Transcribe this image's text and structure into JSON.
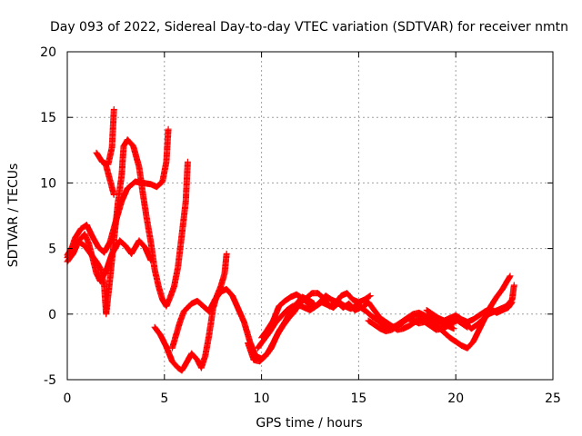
{
  "chart_data": {
    "type": "scatter",
    "title": "Day 093 of 2022, Sidereal Day-to-day VTEC variation (SDTVAR) for receiver nmtn",
    "xlabel": "GPS time / hours",
    "ylabel": "SDTVAR / TECUs",
    "xlim": [
      0,
      25
    ],
    "ylim": [
      -5,
      20
    ],
    "xticks": [
      0,
      5,
      10,
      15,
      20,
      25
    ],
    "yticks": [
      -5,
      0,
      5,
      10,
      15,
      20
    ],
    "grid": true,
    "marker": "+",
    "series_color": "#ff0000",
    "series": [
      {
        "points": [
          [
            0.0,
            4.0
          ],
          [
            0.3,
            4.6
          ],
          [
            0.6,
            5.6
          ],
          [
            0.9,
            6.1
          ],
          [
            1.1,
            5.4
          ],
          [
            1.3,
            4.3
          ],
          [
            1.5,
            3.1
          ],
          [
            1.7,
            2.5
          ],
          [
            2.0,
            3.3
          ],
          [
            2.3,
            4.6
          ],
          [
            2.7,
            5.6
          ],
          [
            3.0,
            5.2
          ],
          [
            3.3,
            4.6
          ],
          [
            3.7,
            5.6
          ],
          [
            4.0,
            5.1
          ],
          [
            4.3,
            4.1
          ]
        ]
      },
      {
        "points": [
          [
            0.0,
            4.3
          ],
          [
            0.2,
            4.9
          ],
          [
            0.4,
            5.8
          ],
          [
            0.7,
            6.5
          ],
          [
            1.0,
            6.8
          ],
          [
            1.3,
            5.9
          ],
          [
            1.6,
            5.1
          ],
          [
            1.9,
            4.7
          ],
          [
            2.2,
            5.5
          ],
          [
            2.5,
            7.1
          ],
          [
            2.8,
            8.6
          ],
          [
            3.1,
            9.6
          ],
          [
            3.5,
            10.1
          ],
          [
            3.9,
            10.0
          ],
          [
            4.3,
            9.9
          ],
          [
            4.6,
            9.7
          ],
          [
            4.9,
            10.1
          ],
          [
            5.1,
            11.6
          ],
          [
            5.2,
            14.1
          ]
        ]
      },
      {
        "points": [
          [
            0.0,
            4.5
          ],
          [
            0.3,
            5.2
          ],
          [
            0.6,
            5.5
          ],
          [
            0.9,
            5.2
          ],
          [
            1.2,
            4.6
          ],
          [
            1.5,
            4.0
          ],
          [
            1.7,
            3.5
          ],
          [
            1.9,
            2.2
          ],
          [
            2.0,
            0.0
          ],
          [
            2.2,
            2.7
          ],
          [
            2.4,
            5.6
          ],
          [
            2.6,
            8.4
          ],
          [
            2.8,
            10.6
          ],
          [
            2.9,
            12.8
          ],
          [
            3.1,
            13.3
          ],
          [
            3.4,
            12.8
          ],
          [
            3.7,
            11.2
          ],
          [
            3.9,
            9.1
          ],
          [
            4.1,
            7.2
          ],
          [
            4.3,
            5.5
          ],
          [
            4.5,
            3.4
          ],
          [
            4.7,
            2.1
          ],
          [
            4.9,
            1.1
          ],
          [
            5.1,
            0.6
          ],
          [
            5.3,
            1.3
          ],
          [
            5.5,
            2.1
          ],
          [
            5.7,
            3.6
          ],
          [
            5.9,
            6.1
          ],
          [
            6.1,
            8.6
          ],
          [
            6.2,
            11.6
          ]
        ]
      },
      {
        "points": [
          [
            1.5,
            12.3
          ],
          [
            1.8,
            11.6
          ],
          [
            2.1,
            11.4
          ],
          [
            2.3,
            12.7
          ],
          [
            2.4,
            15.6
          ]
        ]
      },
      {
        "points": [
          [
            2.0,
            11.3
          ],
          [
            2.2,
            10.2
          ],
          [
            2.4,
            9.1
          ]
        ]
      },
      {
        "points": [
          [
            4.5,
            -1.0
          ],
          [
            4.8,
            -1.6
          ],
          [
            5.1,
            -2.5
          ],
          [
            5.4,
            -3.6
          ],
          [
            5.7,
            -4.1
          ],
          [
            5.9,
            -4.3
          ],
          [
            6.1,
            -3.8
          ],
          [
            6.4,
            -3.0
          ],
          [
            6.7,
            -3.5
          ],
          [
            6.9,
            -4.1
          ],
          [
            7.1,
            -3.2
          ],
          [
            7.3,
            -1.6
          ],
          [
            7.5,
            0.4
          ],
          [
            7.7,
            1.4
          ],
          [
            7.9,
            2.1
          ],
          [
            8.1,
            3.1
          ],
          [
            8.2,
            4.6
          ]
        ]
      },
      {
        "points": [
          [
            5.4,
            -2.6
          ],
          [
            5.6,
            -1.6
          ],
          [
            5.8,
            -0.6
          ],
          [
            6.0,
            0.2
          ],
          [
            6.2,
            0.5
          ],
          [
            6.4,
            0.8
          ],
          [
            6.7,
            1.0
          ],
          [
            7.0,
            0.6
          ],
          [
            7.3,
            0.2
          ],
          [
            7.6,
            1.1
          ],
          [
            7.9,
            1.7
          ],
          [
            8.2,
            1.9
          ],
          [
            8.5,
            1.4
          ],
          [
            8.8,
            0.4
          ],
          [
            9.1,
            -0.6
          ],
          [
            9.4,
            -2.1
          ],
          [
            9.7,
            -3.2
          ],
          [
            10.0,
            -3.4
          ],
          [
            10.3,
            -3.0
          ],
          [
            10.6,
            -2.2
          ],
          [
            10.9,
            -1.3
          ],
          [
            11.2,
            -0.6
          ],
          [
            11.5,
            0.2
          ],
          [
            11.8,
            0.8
          ],
          [
            12.1,
            1.3
          ],
          [
            12.4,
            1.1
          ],
          [
            12.7,
            0.8
          ]
        ]
      },
      {
        "points": [
          [
            9.3,
            -2.2
          ],
          [
            9.6,
            -3.5
          ],
          [
            9.9,
            -3.6
          ],
          [
            10.2,
            -3.2
          ],
          [
            10.5,
            -2.6
          ],
          [
            10.8,
            -1.6
          ],
          [
            11.1,
            -0.9
          ],
          [
            11.4,
            -0.3
          ],
          [
            11.7,
            0.2
          ],
          [
            12.0,
            0.9
          ],
          [
            12.3,
            1.2
          ],
          [
            12.6,
            1.6
          ],
          [
            12.9,
            1.6
          ],
          [
            13.2,
            1.2
          ],
          [
            13.5,
            0.6
          ],
          [
            13.8,
            0.8
          ],
          [
            14.1,
            1.4
          ],
          [
            14.4,
            1.6
          ],
          [
            14.7,
            1.1
          ],
          [
            15.0,
            0.9
          ],
          [
            15.3,
            1.1
          ],
          [
            15.6,
            1.4
          ]
        ]
      },
      {
        "points": [
          [
            10.0,
            -1.8
          ],
          [
            10.3,
            -1.2
          ],
          [
            10.6,
            -0.5
          ],
          [
            10.9,
            0.6
          ],
          [
            11.2,
            1.0
          ],
          [
            11.5,
            1.3
          ],
          [
            11.8,
            1.5
          ],
          [
            12.1,
            1.2
          ],
          [
            12.4,
            0.8
          ],
          [
            12.7,
            0.5
          ],
          [
            13.0,
            0.9
          ],
          [
            13.3,
            1.4
          ],
          [
            13.6,
            1.1
          ],
          [
            13.9,
            0.9
          ],
          [
            14.2,
            0.5
          ],
          [
            14.5,
            0.8
          ],
          [
            14.8,
            0.3
          ],
          [
            15.1,
            0.5
          ],
          [
            15.4,
            0.2
          ],
          [
            15.7,
            -0.2
          ],
          [
            16.0,
            -0.5
          ],
          [
            16.3,
            -0.9
          ],
          [
            16.6,
            -1.1
          ],
          [
            16.9,
            -0.9
          ],
          [
            17.2,
            -0.6
          ],
          [
            17.5,
            -0.3
          ],
          [
            17.8,
            -0.5
          ],
          [
            18.1,
            -0.7
          ],
          [
            18.4,
            -0.6
          ],
          [
            18.7,
            -0.9
          ],
          [
            19.0,
            -1.2
          ],
          [
            19.3,
            -1.1
          ],
          [
            19.6,
            -0.9
          ],
          [
            19.9,
            -1.1
          ]
        ]
      },
      {
        "points": [
          [
            9.8,
            -2.6
          ],
          [
            10.1,
            -2.0
          ],
          [
            10.4,
            -1.4
          ],
          [
            10.7,
            -0.7
          ],
          [
            11.0,
            -0.2
          ],
          [
            11.3,
            0.3
          ],
          [
            11.6,
            0.6
          ],
          [
            11.9,
            0.7
          ],
          [
            12.2,
            0.5
          ],
          [
            12.5,
            0.3
          ],
          [
            12.8,
            0.6
          ],
          [
            13.1,
            0.9
          ],
          [
            13.4,
            0.7
          ],
          [
            13.7,
            0.5
          ],
          [
            14.0,
            0.9
          ],
          [
            14.3,
            0.6
          ],
          [
            14.6,
            0.4
          ],
          [
            14.9,
            0.7
          ],
          [
            15.2,
            0.5
          ],
          [
            15.5,
            0.9
          ],
          [
            15.8,
            0.3
          ],
          [
            16.1,
            -0.3
          ],
          [
            16.4,
            -0.6
          ],
          [
            16.7,
            -0.9
          ],
          [
            17.0,
            -1.2
          ],
          [
            17.3,
            -1.1
          ],
          [
            17.6,
            -0.9
          ],
          [
            17.9,
            -0.6
          ],
          [
            18.2,
            -0.4
          ],
          [
            18.5,
            -0.2
          ],
          [
            18.8,
            -0.1
          ],
          [
            19.1,
            -0.5
          ],
          [
            19.4,
            -0.8
          ],
          [
            19.7,
            -0.6
          ],
          [
            20.0,
            -0.4
          ],
          [
            20.3,
            -0.7
          ],
          [
            20.6,
            -1.0
          ]
        ]
      },
      {
        "points": [
          [
            15.5,
            -0.5
          ],
          [
            15.8,
            -0.8
          ],
          [
            16.1,
            -1.1
          ],
          [
            16.4,
            -1.3
          ],
          [
            16.7,
            -1.2
          ],
          [
            17.0,
            -0.9
          ],
          [
            17.3,
            -0.6
          ],
          [
            17.6,
            -0.3
          ],
          [
            17.9,
            -0.1
          ],
          [
            18.2,
            -0.2
          ],
          [
            18.5,
            -0.5
          ],
          [
            18.8,
            -0.8
          ],
          [
            19.1,
            -1.0
          ],
          [
            19.4,
            -1.4
          ],
          [
            19.7,
            -1.8
          ],
          [
            20.0,
            -2.1
          ],
          [
            20.3,
            -2.4
          ],
          [
            20.6,
            -2.6
          ],
          [
            20.9,
            -2.1
          ],
          [
            21.2,
            -1.2
          ],
          [
            21.5,
            -0.3
          ],
          [
            21.8,
            0.6
          ],
          [
            22.1,
            1.3
          ],
          [
            22.4,
            1.9
          ],
          [
            22.6,
            2.4
          ],
          [
            22.8,
            2.9
          ]
        ]
      },
      {
        "points": [
          [
            17.5,
            -0.3
          ],
          [
            17.8,
            0.0
          ],
          [
            18.1,
            0.1
          ],
          [
            18.4,
            -0.1
          ],
          [
            18.7,
            -0.4
          ],
          [
            19.0,
            -0.6
          ],
          [
            19.3,
            -0.7
          ],
          [
            19.6,
            -0.8
          ],
          [
            19.9,
            -0.6
          ],
          [
            20.2,
            -0.4
          ],
          [
            20.5,
            -0.7
          ],
          [
            20.8,
            -1.1
          ],
          [
            21.1,
            -0.8
          ],
          [
            21.4,
            -0.4
          ],
          [
            21.7,
            0.0
          ],
          [
            22.0,
            0.2
          ],
          [
            22.3,
            0.4
          ],
          [
            22.6,
            0.6
          ],
          [
            22.9,
            1.1
          ],
          [
            23.0,
            2.2
          ]
        ]
      },
      {
        "points": [
          [
            18.5,
            0.3
          ],
          [
            18.8,
            0.0
          ],
          [
            19.1,
            -0.3
          ],
          [
            19.4,
            -0.5
          ],
          [
            19.7,
            -0.3
          ],
          [
            20.0,
            -0.1
          ],
          [
            20.3,
            -0.4
          ],
          [
            20.6,
            -0.6
          ],
          [
            20.9,
            -0.4
          ],
          [
            21.2,
            -0.1
          ],
          [
            21.5,
            0.2
          ],
          [
            21.8,
            0.4
          ],
          [
            22.1,
            0.1
          ],
          [
            22.4,
            0.3
          ],
          [
            22.7,
            0.5
          ],
          [
            22.9,
            0.9
          ]
        ]
      }
    ]
  }
}
